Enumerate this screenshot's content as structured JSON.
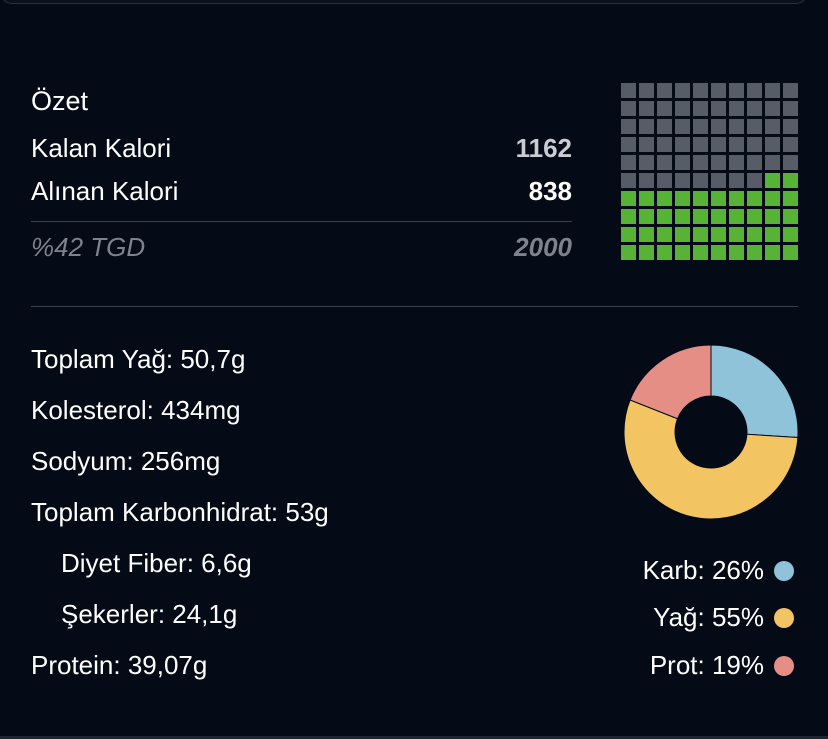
{
  "summary": {
    "title": "Özet",
    "remaining_label": "Kalan Kalori",
    "remaining_value": "1162",
    "consumed_label": "Alınan Kalori",
    "consumed_value": "838",
    "goal_percent_label": "%42 TGD",
    "goal_value": "2000"
  },
  "waffle": {
    "total_cells": 100,
    "filled_cells": 42,
    "filled_color": "#56b336",
    "empty_color": "#575c67"
  },
  "nutrients": [
    {
      "label": "Toplam Yağ: 50,7g",
      "indent": false
    },
    {
      "label": "Kolesterol: 434mg",
      "indent": false
    },
    {
      "label": "Sodyum: 256mg",
      "indent": false
    },
    {
      "label": "Toplam Karbonhidrat: 53g",
      "indent": false
    },
    {
      "label": "Diyet Fiber: 6,6g",
      "indent": true
    },
    {
      "label": "Şekerler: 24,1g",
      "indent": true
    },
    {
      "label": "Protein: 39,07g",
      "indent": false
    }
  ],
  "chart_data": {
    "type": "pie",
    "title": "",
    "categories": [
      "Karb",
      "Yağ",
      "Prot"
    ],
    "values": [
      26,
      55,
      19
    ],
    "colors": [
      "#8fc3da",
      "#f2c562",
      "#e58e86"
    ],
    "legend_labels": [
      "Karb: 26%",
      "Yağ: 55%",
      "Prot: 19%"
    ],
    "legend_placement": "bottom-right",
    "donut": true
  }
}
